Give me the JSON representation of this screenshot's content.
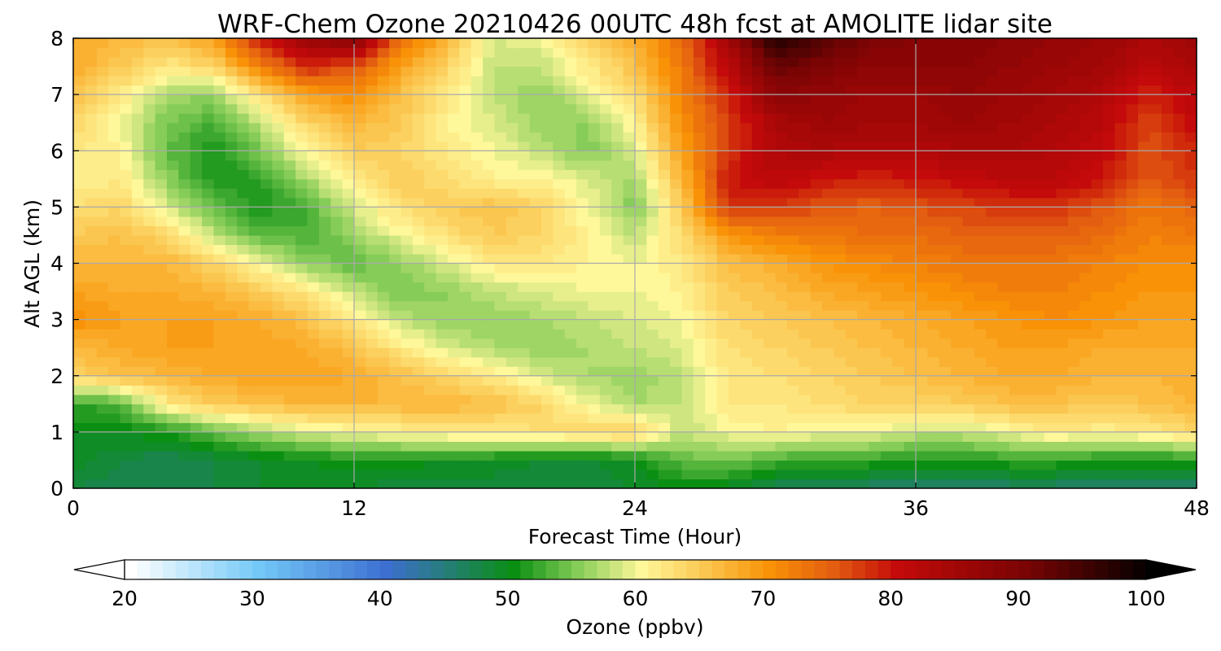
{
  "chart_data": {
    "type": "heatmap",
    "title": "WRF-Chem Ozone  20210426 00UTC 48h fcst at AMOLITE lidar site",
    "xlabel": "Forecast Time (Hour)",
    "ylabel": "Alt AGL (km)",
    "xlim": [
      0,
      48
    ],
    "ylim": [
      0,
      8
    ],
    "xticks": [
      "0",
      "12",
      "24",
      "36",
      "48"
    ],
    "yticks": [
      "0",
      "1",
      "2",
      "3",
      "4",
      "5",
      "6",
      "7",
      "8"
    ],
    "grid": true,
    "x_hours": [
      0,
      2,
      4,
      6,
      8,
      10,
      12,
      14,
      16,
      18,
      20,
      22,
      24,
      26,
      28,
      30,
      32,
      34,
      36,
      38,
      40,
      42,
      44,
      46,
      48
    ],
    "y_km": [
      0,
      0.5,
      1,
      1.5,
      2,
      2.5,
      3,
      3.5,
      4,
      4.5,
      5,
      5.5,
      6,
      6.5,
      7,
      7.5,
      8
    ],
    "z_ppbv": [
      [
        48,
        47,
        47,
        48,
        49,
        49,
        49,
        48,
        48,
        48,
        48,
        48,
        49,
        50,
        49,
        47,
        46,
        46,
        46,
        46,
        46,
        46,
        46,
        46,
        45
      ],
      [
        50,
        48,
        47,
        48,
        49,
        50,
        51,
        51,
        50,
        50,
        49,
        49,
        50,
        54,
        55,
        53,
        52,
        52,
        51,
        51,
        52,
        52,
        51,
        51,
        51
      ],
      [
        50,
        50,
        51,
        54,
        57,
        59,
        60,
        61,
        62,
        62,
        63,
        64,
        65,
        58,
        60,
        61,
        60,
        60,
        58,
        58,
        60,
        62,
        61,
        62,
        64
      ],
      [
        52,
        53,
        62,
        65,
        66,
        67,
        67,
        67,
        67,
        66,
        64,
        60,
        57,
        58,
        62,
        62,
        63,
        64,
        64,
        65,
        66,
        66,
        65,
        66,
        67
      ],
      [
        64,
        66,
        67,
        68,
        69,
        69,
        68,
        66,
        64,
        62,
        59,
        57,
        56,
        58,
        62,
        63,
        64,
        65,
        66,
        67,
        68,
        68,
        67,
        67,
        68
      ],
      [
        67,
        68,
        69,
        69,
        69,
        68,
        66,
        62,
        59,
        57,
        56,
        57,
        58,
        59,
        63,
        64,
        65,
        66,
        67,
        68,
        69,
        69,
        68,
        68,
        68
      ],
      [
        71,
        69,
        69,
        69,
        68,
        66,
        62,
        58,
        56,
        56,
        57,
        58,
        59,
        60,
        64,
        65,
        66,
        67,
        68,
        69,
        70,
        71,
        70,
        69,
        69
      ],
      [
        69,
        68,
        68,
        67,
        65,
        62,
        58,
        55,
        56,
        58,
        59,
        60,
        60,
        61,
        65,
        66,
        68,
        69,
        70,
        71,
        72,
        72,
        71,
        70,
        70
      ],
      [
        67,
        67,
        67,
        64,
        60,
        56,
        54,
        56,
        59,
        62,
        62,
        61,
        60,
        62,
        66,
        68,
        70,
        71,
        72,
        73,
        73,
        73,
        72,
        71,
        71
      ],
      [
        65,
        66,
        64,
        58,
        54,
        53,
        56,
        60,
        63,
        65,
        64,
        61,
        58,
        63,
        70,
        72,
        73,
        74,
        74,
        75,
        75,
        75,
        74,
        72,
        73
      ],
      [
        63,
        64,
        59,
        54,
        51,
        53,
        59,
        63,
        65,
        66,
        64,
        60,
        55,
        65,
        78,
        78,
        76,
        75,
        76,
        77,
        78,
        78,
        76,
        73,
        75
      ],
      [
        61,
        62,
        56,
        51,
        52,
        57,
        62,
        65,
        63,
        61,
        61,
        59,
        57,
        67,
        80,
        82,
        80,
        79,
        80,
        81,
        82,
        82,
        80,
        76,
        78
      ],
      [
        62,
        61,
        54,
        51,
        55,
        61,
        65,
        64,
        62,
        60,
        58,
        55,
        59,
        69,
        78,
        83,
        84,
        83,
        83,
        84,
        84,
        83,
        81,
        76,
        79
      ],
      [
        64,
        60,
        55,
        53,
        58,
        64,
        67,
        65,
        61,
        59,
        56,
        56,
        61,
        71,
        77,
        84,
        86,
        85,
        85,
        86,
        85,
        84,
        82,
        77,
        81
      ],
      [
        66,
        62,
        57,
        56,
        63,
        69,
        71,
        66,
        62,
        58,
        56,
        59,
        63,
        72,
        79,
        88,
        87,
        86,
        86,
        87,
        86,
        85,
        83,
        79,
        82
      ],
      [
        68,
        65,
        62,
        64,
        72,
        79,
        76,
        69,
        64,
        58,
        58,
        62,
        66,
        73,
        82,
        92,
        90,
        88,
        88,
        88,
        87,
        86,
        85,
        82,
        84
      ],
      [
        68,
        67,
        66,
        69,
        80,
        86,
        89,
        74,
        67,
        59,
        60,
        64,
        68,
        74,
        85,
        98,
        94,
        90,
        89,
        89,
        88,
        87,
        86,
        84,
        86
      ]
    ],
    "colorbar": {
      "label": "Ozone  (ppbv)",
      "min": 20,
      "max": 100,
      "ticks": [
        "20",
        "30",
        "40",
        "50",
        "60",
        "70",
        "80",
        "90",
        "100"
      ],
      "extend": "both",
      "colors": [
        {
          "value": 20,
          "color": "#ffffff"
        },
        {
          "value": 30,
          "color": "#73c8f7"
        },
        {
          "value": 40,
          "color": "#3d6fd1"
        },
        {
          "value": 50,
          "color": "#0a8f12"
        },
        {
          "value": 55,
          "color": "#86cc58"
        },
        {
          "value": 60,
          "color": "#fff89a"
        },
        {
          "value": 65,
          "color": "#fbc64f"
        },
        {
          "value": 70,
          "color": "#f99207"
        },
        {
          "value": 75,
          "color": "#e35e10"
        },
        {
          "value": 80,
          "color": "#c40a0a"
        },
        {
          "value": 90,
          "color": "#7a0404"
        },
        {
          "value": 100,
          "color": "#000000"
        }
      ]
    }
  }
}
